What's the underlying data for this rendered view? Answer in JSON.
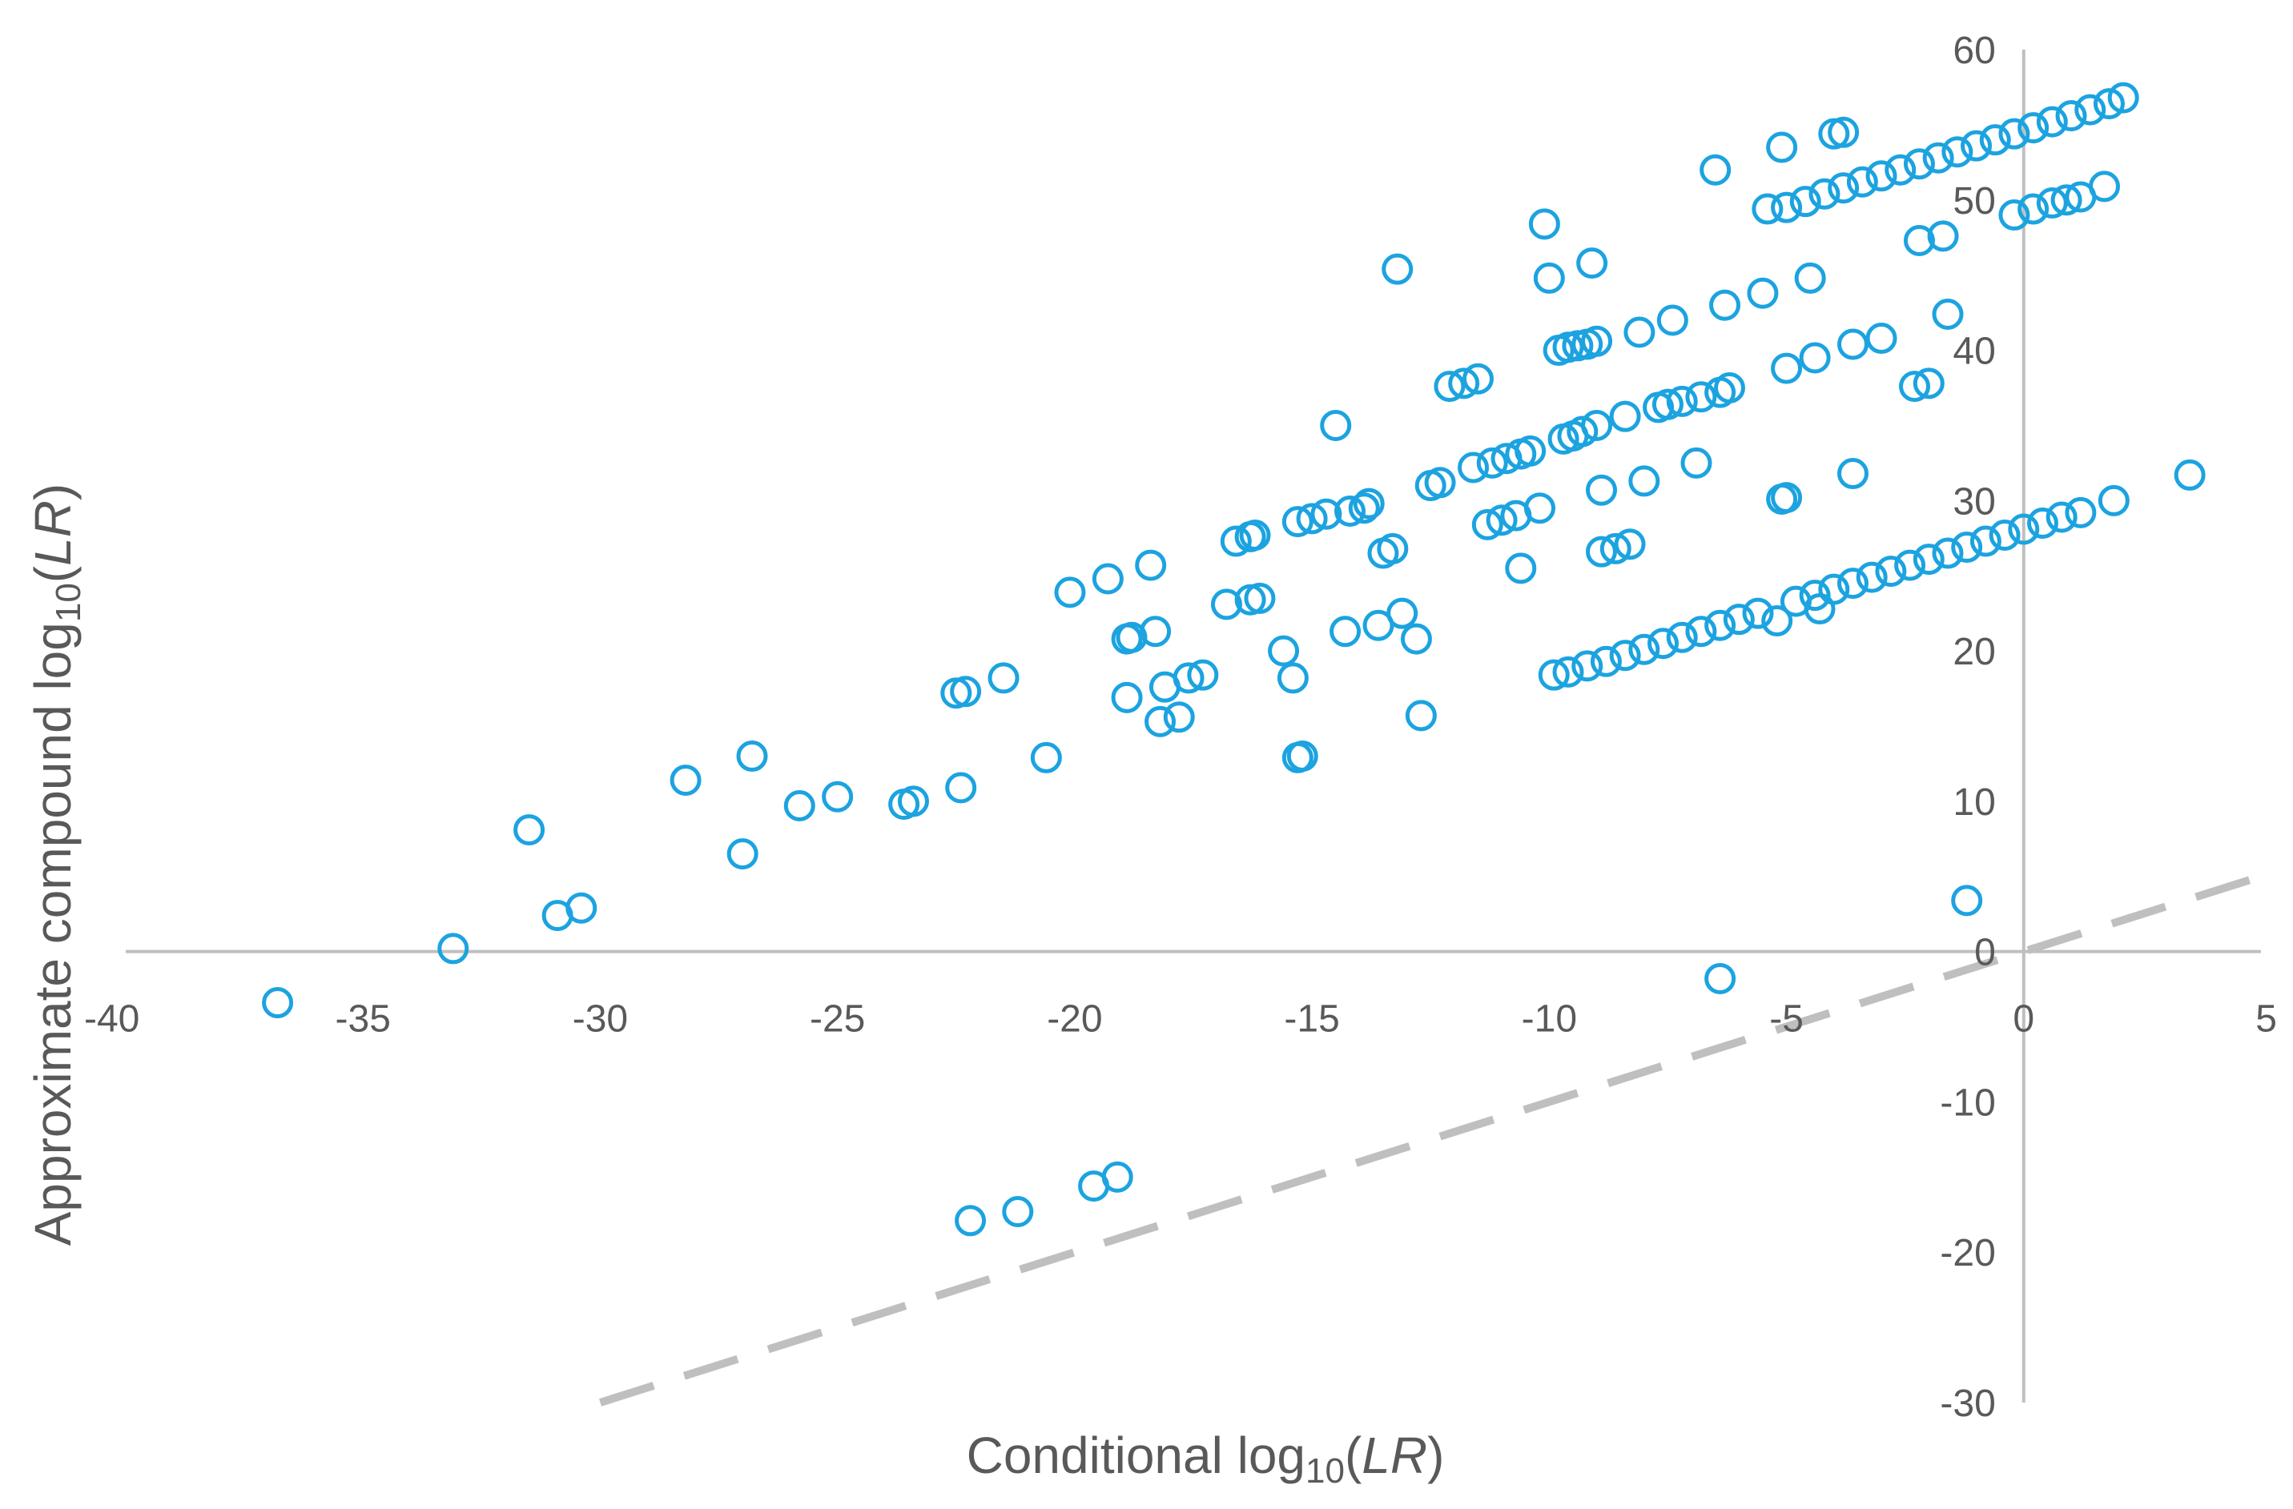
{
  "chart_data": {
    "type": "scatter",
    "xlabel": {
      "prefix": "Conditional log",
      "sub": "10",
      "open": "(",
      "italic": "LR",
      "close": ")"
    },
    "ylabel": {
      "prefix": "Approximate compound log",
      "sub": "10",
      "open": "(",
      "italic": "LR",
      "close": ")"
    },
    "xlim": [
      -40,
      5
    ],
    "ylim": [
      -30,
      60
    ],
    "x_ticks": [
      -40,
      -35,
      -30,
      -25,
      -20,
      -15,
      -10,
      -5,
      0,
      5
    ],
    "y_ticks": [
      -30,
      -20,
      -10,
      0,
      10,
      20,
      30,
      40,
      50,
      60
    ],
    "grid": false,
    "legend": "none",
    "marker": {
      "shape": "open-circle",
      "color": "#1CA3E0"
    },
    "reference_line": {
      "style": "dashed",
      "color": "#BFBFBF",
      "points": [
        [
          -30,
          -30
        ],
        [
          5,
          5
        ]
      ]
    },
    "series": [
      {
        "points": [
          [
            -36.8,
            -3.4
          ],
          [
            -33.1,
            0.2
          ],
          [
            -31.5,
            8.1
          ],
          [
            -30.9,
            2.4
          ],
          [
            -30.4,
            2.9
          ],
          [
            -28.2,
            11.4
          ],
          [
            -27.0,
            6.5
          ],
          [
            -26.8,
            13.0
          ],
          [
            -25.8,
            9.7
          ],
          [
            -25.0,
            10.3
          ],
          [
            -23.6,
            9.8
          ],
          [
            -23.4,
            10.0
          ],
          [
            -22.4,
            10.9
          ],
          [
            -22.5,
            17.2
          ],
          [
            -22.3,
            17.3
          ],
          [
            -21.5,
            18.2
          ],
          [
            -20.6,
            12.9
          ],
          [
            -20.1,
            23.9
          ],
          [
            -19.3,
            24.8
          ],
          [
            -18.9,
            20.8
          ],
          [
            -18.8,
            20.9
          ],
          [
            -18.9,
            16.9
          ],
          [
            -18.4,
            25.7
          ],
          [
            -18.3,
            21.3
          ],
          [
            -18.2,
            15.3
          ],
          [
            -18.1,
            17.6
          ],
          [
            -17.8,
            15.6
          ],
          [
            -17.6,
            18.2
          ],
          [
            -17.3,
            18.4
          ],
          [
            -16.8,
            23.1
          ],
          [
            -16.6,
            27.3
          ],
          [
            -16.3,
            27.6
          ],
          [
            -16.2,
            27.7
          ],
          [
            -16.3,
            23.4
          ],
          [
            -16.1,
            23.5
          ],
          [
            -15.6,
            20.0
          ],
          [
            -15.4,
            18.2
          ],
          [
            -15.3,
            12.9
          ],
          [
            -15.2,
            13.0
          ],
          [
            -15.3,
            28.6
          ],
          [
            -15.0,
            28.8
          ],
          [
            -14.7,
            29.1
          ],
          [
            -14.5,
            35.0
          ],
          [
            -14.3,
            21.3
          ],
          [
            -14.2,
            29.3
          ],
          [
            -13.9,
            29.5
          ],
          [
            -13.8,
            29.8
          ],
          [
            -13.6,
            21.7
          ],
          [
            -13.5,
            26.5
          ],
          [
            -13.3,
            26.8
          ],
          [
            -13.2,
            45.4
          ],
          [
            -13.1,
            22.5
          ],
          [
            -12.8,
            20.8
          ],
          [
            -12.7,
            15.7
          ],
          [
            -12.5,
            31.0
          ],
          [
            -12.3,
            31.2
          ],
          [
            -12.1,
            37.6
          ],
          [
            -11.8,
            37.8
          ],
          [
            -11.5,
            38.1
          ],
          [
            -11.3,
            28.4
          ],
          [
            -11.0,
            28.7
          ],
          [
            -10.7,
            29.0
          ],
          [
            -11.6,
            32.2
          ],
          [
            -11.2,
            32.5
          ],
          [
            -10.9,
            32.8
          ],
          [
            -10.6,
            33.1
          ],
          [
            -10.4,
            33.3
          ],
          [
            -10.6,
            25.5
          ],
          [
            -10.2,
            29.5
          ],
          [
            -10.1,
            48.4
          ],
          [
            -10.0,
            44.8
          ],
          [
            -9.9,
            18.4
          ],
          [
            -9.7,
            34.1
          ],
          [
            -9.5,
            34.3
          ],
          [
            -9.3,
            34.6
          ],
          [
            -9.0,
            35.0
          ],
          [
            -9.1,
            45.8
          ],
          [
            -9.8,
            40.0
          ],
          [
            -9.6,
            40.2
          ],
          [
            -9.4,
            40.3
          ],
          [
            -9.2,
            40.4
          ],
          [
            -9.0,
            40.6
          ],
          [
            -8.9,
            30.7
          ],
          [
            -8.9,
            26.6
          ],
          [
            -8.6,
            26.8
          ],
          [
            -8.3,
            27.1
          ],
          [
            -8.4,
            35.6
          ],
          [
            -8.1,
            41.2
          ],
          [
            -8.0,
            31.3
          ],
          [
            -7.7,
            36.2
          ],
          [
            -7.5,
            36.4
          ],
          [
            -7.2,
            36.6
          ],
          [
            -7.4,
            42.0
          ],
          [
            -6.9,
            32.5
          ],
          [
            -6.8,
            36.9
          ],
          [
            -6.4,
            37.2
          ],
          [
            -6.5,
            52.0
          ],
          [
            -6.3,
            43.0
          ],
          [
            -6.2,
            37.5
          ],
          [
            -6.4,
            -1.8
          ],
          [
            -5.5,
            43.8
          ],
          [
            -5.4,
            49.4
          ],
          [
            -5.1,
            53.5
          ],
          [
            -5.0,
            38.8
          ],
          [
            -5.1,
            30.1
          ],
          [
            -5.0,
            30.2
          ],
          [
            -4.5,
            44.8
          ],
          [
            -4.4,
            39.5
          ],
          [
            -4.0,
            54.4
          ],
          [
            -3.8,
            54.5
          ],
          [
            -3.6,
            40.4
          ],
          [
            -3.6,
            31.8
          ],
          [
            -3.0,
            40.8
          ],
          [
            -2.3,
            37.6
          ],
          [
            -2.0,
            37.8
          ],
          [
            -2.2,
            47.3
          ],
          [
            -1.7,
            47.6
          ],
          [
            -1.6,
            42.4
          ],
          [
            -1.2,
            3.4
          ],
          [
            -0.2,
            49.0
          ],
          [
            0.2,
            49.4
          ],
          [
            0.6,
            49.8
          ],
          [
            0.9,
            50.0
          ],
          [
            1.2,
            50.2
          ],
          [
            1.7,
            50.9
          ],
          [
            1.9,
            30.0
          ],
          [
            3.5,
            31.7
          ],
          [
            -5.0,
            49.5
          ],
          [
            -4.6,
            49.9
          ],
          [
            -4.2,
            50.4
          ],
          [
            -3.8,
            50.8
          ],
          [
            -3.4,
            51.2
          ],
          [
            -3.0,
            51.6
          ],
          [
            -2.6,
            52.0
          ],
          [
            -2.2,
            52.4
          ],
          [
            -1.8,
            52.8
          ],
          [
            -1.4,
            53.2
          ],
          [
            -1.0,
            53.6
          ],
          [
            -0.6,
            54.0
          ],
          [
            -0.2,
            54.4
          ],
          [
            0.2,
            54.8
          ],
          [
            0.6,
            55.2
          ],
          [
            1.0,
            55.6
          ],
          [
            1.4,
            56.0
          ],
          [
            1.8,
            56.4
          ],
          [
            2.1,
            56.8
          ],
          [
            -9.6,
            18.6
          ],
          [
            -9.2,
            19.0
          ],
          [
            -8.8,
            19.3
          ],
          [
            -8.4,
            19.7
          ],
          [
            -8.0,
            20.1
          ],
          [
            -7.6,
            20.5
          ],
          [
            -7.2,
            20.9
          ],
          [
            -6.8,
            21.3
          ],
          [
            -6.4,
            21.7
          ],
          [
            -6.0,
            22.1
          ],
          [
            -5.6,
            22.5
          ],
          [
            -5.2,
            22.0
          ],
          [
            -4.8,
            23.3
          ],
          [
            -4.4,
            23.7
          ],
          [
            -4.3,
            22.8
          ],
          [
            -4.0,
            24.1
          ],
          [
            -3.6,
            24.5
          ],
          [
            -3.2,
            24.9
          ],
          [
            -2.8,
            25.3
          ],
          [
            -2.4,
            25.7
          ],
          [
            -2.0,
            26.1
          ],
          [
            -1.6,
            26.5
          ],
          [
            -1.2,
            26.9
          ],
          [
            -0.8,
            27.3
          ],
          [
            -0.4,
            27.7
          ],
          [
            0.0,
            28.1
          ],
          [
            0.4,
            28.5
          ],
          [
            0.8,
            28.9
          ],
          [
            1.2,
            29.2
          ],
          [
            -22.2,
            -17.9
          ],
          [
            -21.2,
            -17.3
          ],
          [
            -19.6,
            -15.6
          ],
          [
            -19.1,
            -15.0
          ]
        ]
      }
    ]
  }
}
